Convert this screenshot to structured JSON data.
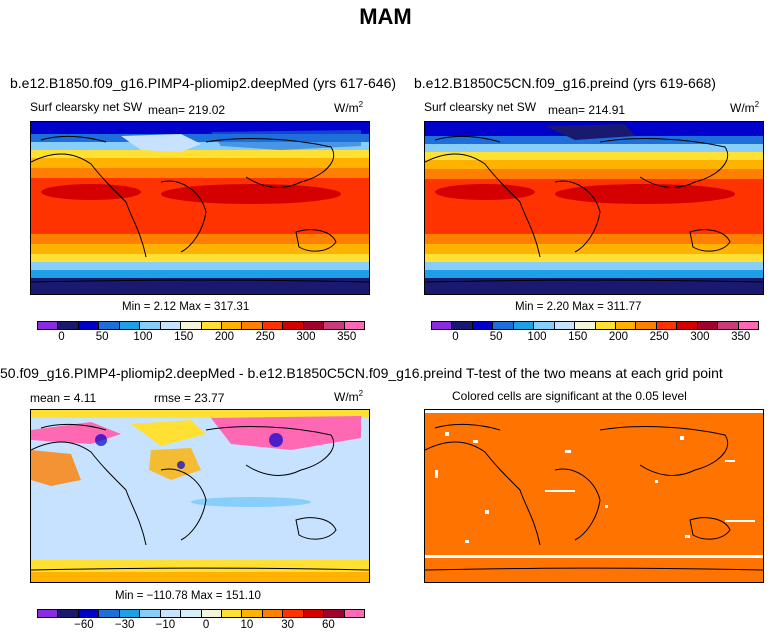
{
  "page_title": "MAM",
  "units": "W/m",
  "units_sup": "2",
  "panels": {
    "p1": {
      "title": "b.e12.B1850.f09_g16.PIMP4-pliomip2.deepMed (yrs 617-646)",
      "variable": "Surf clearsky net SW",
      "mean": "mean= 219.02",
      "minmax": "Min =    2.12 Max = 317.31"
    },
    "p2": {
      "title": "b.e12.B1850C5CN.f09_g16.preind (yrs 619-668)",
      "variable": "Surf clearsky net SW",
      "mean": "mean= 214.91",
      "minmax": "Min =    2.20 Max = 311.77"
    },
    "p3": {
      "title": "50.f09_g16.PIMP4-pliomip2.deepMed - b.e12.B1850C5CN.f09_g16.preind",
      "mean": "mean =    4.11",
      "rmse": "rmse =   23.77",
      "minmax": "Min = −110.78 Max = 151.10"
    },
    "p4": {
      "title": "T-test of the two means at each grid point",
      "note": "Colored cells are significant at the 0.05 level"
    }
  },
  "colorbar_abs": {
    "colors": [
      "#8a2be2",
      "#191970",
      "#0000cd",
      "#1e6fd9",
      "#1e9fe6",
      "#87cefa",
      "#c6e2ff",
      "#f5f5dc",
      "#ffe033",
      "#ffb300",
      "#ff7f00",
      "#ff3300",
      "#d40000",
      "#a0002a",
      "#c83c78",
      "#ff69b4"
    ],
    "labels": [
      "0",
      "50",
      "100",
      "150",
      "200",
      "250",
      "300",
      "350"
    ]
  },
  "colorbar_diff": {
    "colors": [
      "#8a2be2",
      "#191970",
      "#0000cd",
      "#1e6fd9",
      "#1e9fe6",
      "#87cefa",
      "#c6e2ff",
      "#d6eefa",
      "#f5f5dc",
      "#ffe033",
      "#ffb300",
      "#ff7f00",
      "#ff3300",
      "#d40000",
      "#a0002a",
      "#ff69b4"
    ],
    "labels": [
      "−60",
      "−30",
      "−10",
      "0",
      "10",
      "30",
      "60"
    ]
  },
  "ttest_color": "#ff7300"
}
